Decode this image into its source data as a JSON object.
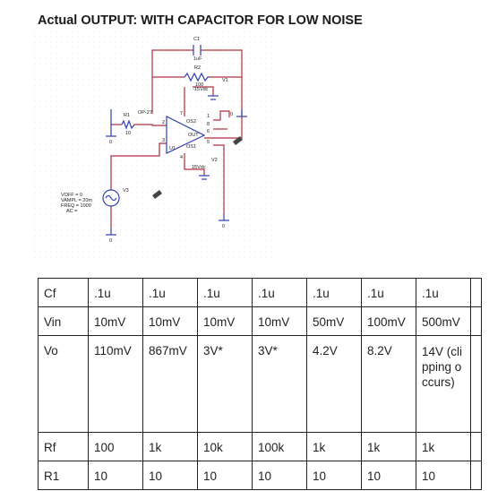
{
  "title": "Actual OUTPUT: WITH CAPACITOR FOR LOW NOISE",
  "schematic": {
    "c1_name": "C1",
    "c1_value": "1uF",
    "r2_name": "R2",
    "r2_value": "100",
    "v1_name": "V1",
    "v1_value": "-15Vdc",
    "r1_name": "R1",
    "r1_value": "10",
    "opamp_name": "OP-27",
    "u1_name": "U1",
    "v2_name": "V2",
    "v2_value": "15Vdc",
    "v3_name": "V3",
    "source_params": [
      "VOFF = 0",
      "VAMPL = 20m",
      "FREQ = 1000",
      "AC ="
    ],
    "pin_labels": [
      "OS2",
      "OUT",
      "OS1"
    ],
    "pin_numbers": [
      "2",
      "3",
      "7",
      "4",
      "6",
      "5",
      "8",
      "1"
    ],
    "ground_labels": [
      "0",
      "0",
      "0",
      "0"
    ],
    "colors": {
      "wire": "#b03040",
      "component": "#3040b0",
      "grid": "#d4d4d4"
    }
  },
  "table": {
    "rows": [
      {
        "label": "Cf",
        "values": [
          ".1u",
          ".1u",
          ".1u",
          ".1u",
          ".1u",
          ".1u",
          ".1u",
          ""
        ]
      },
      {
        "label": "Vin",
        "values": [
          "10mV",
          "10mV",
          "10mV",
          "10mV",
          "50mV",
          "100mV",
          "500mV",
          ""
        ]
      },
      {
        "label": "Vo",
        "values": [
          "110mV",
          "867mV",
          "3V*",
          "3V*",
          "4.2V",
          "8.2V",
          "14V (clipping occurs)",
          ""
        ]
      },
      {
        "label": "Rf",
        "values": [
          "100",
          "1k",
          "10k",
          "100k",
          "1k",
          "1k",
          "1k",
          ""
        ]
      },
      {
        "label": "R1",
        "values": [
          "10",
          "10",
          "10",
          "10",
          "10",
          "10",
          "10",
          ""
        ]
      }
    ]
  }
}
